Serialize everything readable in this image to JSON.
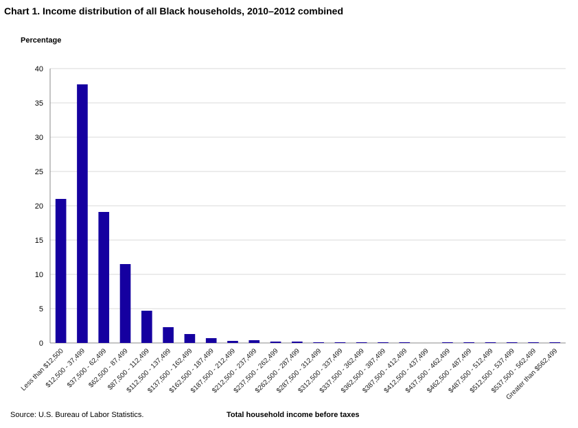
{
  "chart_title": "Chart 1. Income distribution of all Black households, 2010–2012 combined",
  "source": "Source: U.S. Bureau of Labor Statistics.",
  "colors": {
    "bar": "#1500a0",
    "grid": "#d9d9d9",
    "axis": "#888888"
  },
  "chart_data": {
    "type": "bar",
    "title": "Chart 1. Income distribution of all Black households, 2010–2012 combined",
    "ylabel": "Percentage",
    "xlabel": "Total household  income before taxes",
    "ylim": [
      0,
      40
    ],
    "yticks": [
      0,
      5,
      10,
      15,
      20,
      25,
      30,
      35,
      40
    ],
    "grid": true,
    "legend": "none",
    "categories": [
      "Less than $12,500",
      "$12,500 - 37,499",
      "$37,500 - 62,499",
      "$62,500 - 87,499",
      "$87,500 - 112,499",
      "$112,500 - 137,499",
      "$137,500 - 162,499",
      "$162,500 - 187,499",
      "$187,500 - 212,499",
      "$212,500 - 237,499",
      "$237,500 - 262,499",
      "$262,500 - 287,499",
      "$287,500 - 312,499",
      "$312,500 - 337,499",
      "$337,500 - 362,499",
      "$362,500 - 387,499",
      "$387,500 - 412,499",
      "$412,500 - 437,499",
      "$437,500 - 462,499",
      "$462,500 - 487,499",
      "$487,500 - 512,499",
      "$512,500 - 537,499",
      "$537,500 - 562,499",
      "Greater than $562,499"
    ],
    "values": [
      21.0,
      37.7,
      19.1,
      11.5,
      4.7,
      2.3,
      1.3,
      0.7,
      0.3,
      0.4,
      0.2,
      0.2,
      0.1,
      0.1,
      0.1,
      0.1,
      0.1,
      0.0,
      0.1,
      0.1,
      0.1,
      0.1,
      0.1,
      0.1
    ]
  }
}
